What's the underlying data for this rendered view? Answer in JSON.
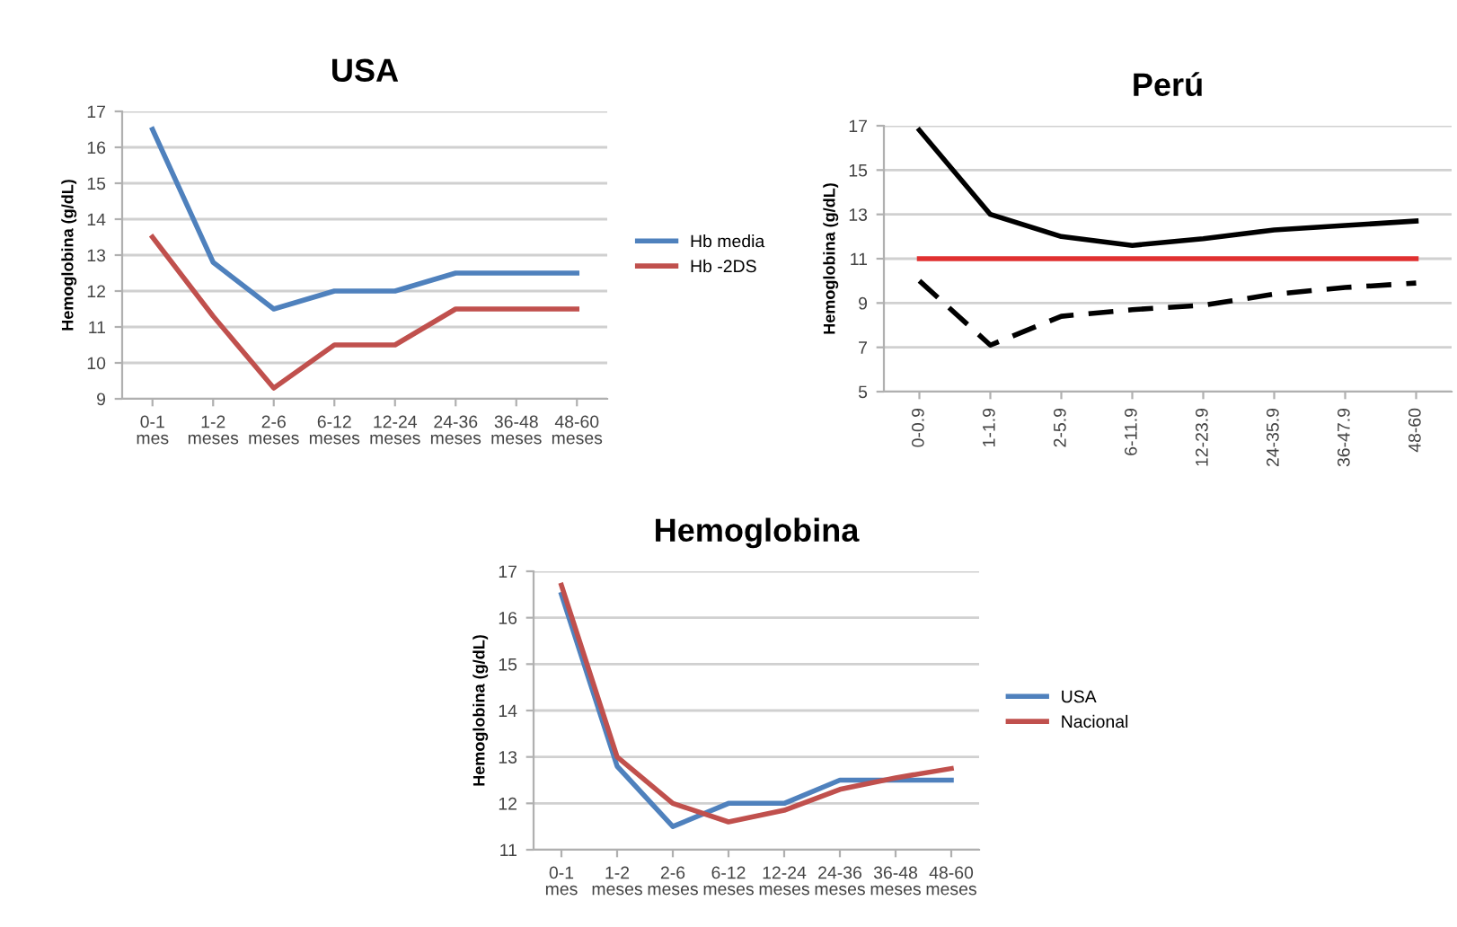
{
  "chart_data": [
    {
      "type": "line",
      "title": "USA",
      "ylabel": "Hemoglobina (g/dL)",
      "categories": [
        "0-1\nmes",
        "1-2\nmeses",
        "2-6\nmeses",
        "6-12\nmeses",
        "12-24\nmeses",
        "24-36\nmeses",
        "36-48\nmeses",
        "48-60\nmeses"
      ],
      "ylim": [
        9,
        17
      ],
      "yticks": [
        9,
        10,
        11,
        12,
        13,
        14,
        15,
        16,
        17
      ],
      "grid": "y",
      "legend": "right",
      "series": [
        {
          "name": "Hb media",
          "color": "#4f81bd",
          "values": [
            16.5,
            12.8,
            11.5,
            12.0,
            12.0,
            12.5,
            12.5,
            12.5
          ]
        },
        {
          "name": "Hb -2DS",
          "color": "#c0504d",
          "values": [
            13.5,
            11.3,
            9.3,
            10.5,
            10.5,
            11.5,
            11.5,
            11.5
          ]
        }
      ]
    },
    {
      "type": "line",
      "title": "Perú",
      "ylabel": "Hemoglobina (g/dL)",
      "categories": [
        "0-0.9",
        "1-1.9",
        "2-5.9",
        "6-11.9",
        "12-23.9",
        "24-35.9",
        "36-47.9",
        "48-60"
      ],
      "ylim": [
        5,
        17
      ],
      "yticks": [
        5,
        7,
        9,
        11,
        13,
        15,
        17
      ],
      "grid": "y",
      "series": [
        {
          "color": "#000000",
          "values": [
            16.8,
            13.0,
            12.0,
            11.6,
            11.9,
            12.3,
            12.5,
            12.7
          ]
        },
        {
          "color": "#e03030",
          "values": [
            11,
            11,
            11,
            11,
            11,
            11,
            11,
            11
          ]
        },
        {
          "color": "#000000",
          "line_style": "dashed",
          "values": [
            10.0,
            7.1,
            8.4,
            8.7,
            8.9,
            9.4,
            9.7,
            9.9
          ]
        }
      ]
    },
    {
      "type": "line",
      "title": "Hemoglobina",
      "ylabel": "Hemoglobina (g/dL)",
      "categories": [
        "0-1\nmes",
        "1-2\nmeses",
        "2-6\nmeses",
        "6-12\nmeses",
        "12-24\nmeses",
        "24-36\nmeses",
        "36-48\nmeses",
        "48-60\nmeses"
      ],
      "ylim": [
        11,
        17
      ],
      "yticks": [
        11,
        12,
        13,
        14,
        15,
        16,
        17
      ],
      "grid": "y",
      "legend": "right",
      "series": [
        {
          "name": "USA",
          "color": "#4f81bd",
          "values": [
            16.5,
            12.8,
            11.5,
            12.0,
            12.0,
            12.5,
            12.5,
            12.5
          ]
        },
        {
          "name": "Nacional",
          "color": "#c0504d",
          "values": [
            16.7,
            13.0,
            12.0,
            11.6,
            11.85,
            12.3,
            12.55,
            12.75
          ]
        }
      ]
    }
  ]
}
